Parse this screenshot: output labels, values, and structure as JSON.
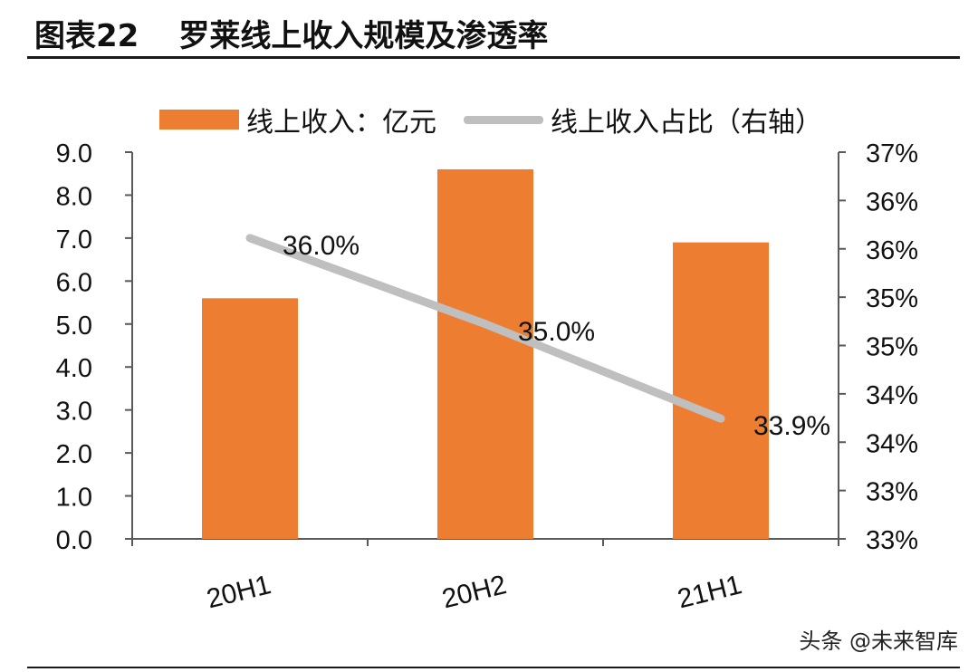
{
  "figure": {
    "number": "图表22",
    "title": "罗莱线上收入规模及渗透率"
  },
  "watermark": "头条 @未来智库",
  "colors": {
    "bar": "#ED7D31",
    "line": "#BFBFBF",
    "text": "#111111"
  },
  "chart_data": {
    "type": "bar",
    "categories": [
      "20H1",
      "20H2",
      "21H1"
    ],
    "series": [
      {
        "name": "线上收入：亿元",
        "type": "bar",
        "axis": "left",
        "values": [
          5.6,
          8.6,
          6.9
        ]
      },
      {
        "name": "线上收入占比（右轴）",
        "type": "line",
        "axis": "right",
        "values": [
          36.0,
          35.0,
          33.9
        ],
        "data_labels": [
          "36.0%",
          "35.0%",
          "33.9%"
        ]
      }
    ],
    "y_left": {
      "range": [
        0,
        9
      ],
      "ticks": [
        "0.0",
        "1.0",
        "2.0",
        "3.0",
        "4.0",
        "5.0",
        "6.0",
        "7.0",
        "8.0",
        "9.0"
      ]
    },
    "y_right": {
      "range": [
        32.5,
        37
      ],
      "ticks": [
        "33%",
        "33%",
        "34%",
        "34%",
        "35%",
        "35%",
        "36%",
        "36%",
        "37%"
      ]
    },
    "legend": "top",
    "grid": false
  }
}
